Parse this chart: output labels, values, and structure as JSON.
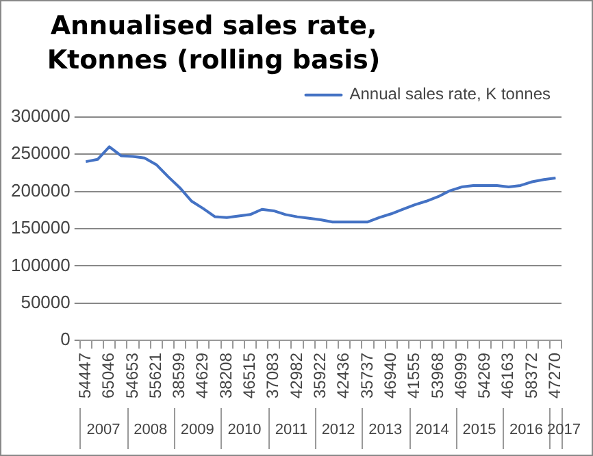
{
  "chart_data": {
    "type": "line",
    "title": "Annualised  sales rate, Ktonnes (rolling basis)",
    "categories": [
      "54447",
      null,
      "65046",
      null,
      "54653",
      null,
      "55621",
      null,
      "38599",
      null,
      "44629",
      null,
      "38208",
      null,
      "46515",
      null,
      "37083",
      null,
      "42982",
      null,
      "35922",
      null,
      "42436",
      null,
      "35737",
      null,
      "46940",
      null,
      "41555",
      null,
      "53968",
      null,
      "46999",
      null,
      "54269",
      null,
      "46163",
      null,
      "58372",
      null,
      "47270"
    ],
    "series": [
      {
        "name": "Annual sales rate, K tonnes",
        "color": "#4472c4",
        "values": [
          240000,
          243000,
          260000,
          248000,
          247000,
          245000,
          236000,
          220000,
          205000,
          187000,
          177000,
          166000,
          165000,
          167000,
          169000,
          176000,
          174000,
          169000,
          166000,
          164000,
          162000,
          159000,
          159000,
          159000,
          159000,
          165000,
          170000,
          176000,
          182000,
          187000,
          193000,
          201000,
          206000,
          208000,
          208000,
          208000,
          206000,
          208000,
          213000,
          216000,
          218000
        ]
      }
    ],
    "ylim": [
      0,
      300000
    ],
    "yticks": [
      0,
      50000,
      100000,
      150000,
      200000,
      250000,
      300000
    ],
    "annotations": [
      "2007",
      "2008",
      "2009",
      "2010",
      "2011",
      "2012",
      "2013",
      "2014",
      "2015",
      "2016",
      "2017"
    ],
    "grid": "y",
    "legend": "top right",
    "marker": "none",
    "line_style": "solid"
  }
}
